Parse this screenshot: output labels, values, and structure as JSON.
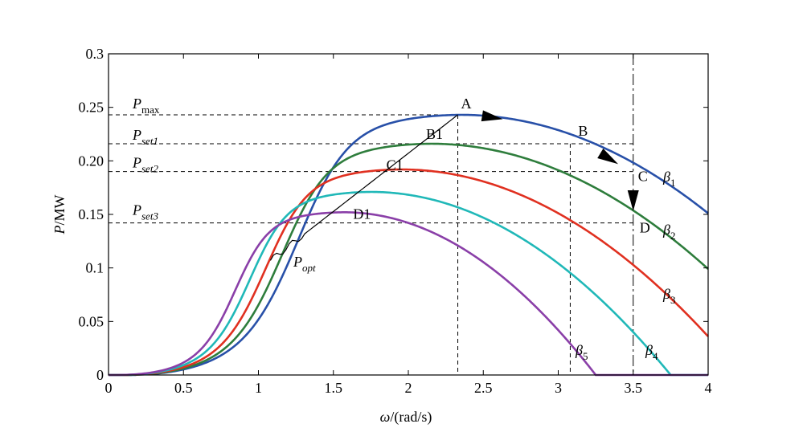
{
  "chart_data": {
    "type": "line",
    "xlabel_symbol": "ω",
    "xlabel_unit": "/(rad/s)",
    "ylabel_symbol": "P",
    "ylabel_unit": "/MW",
    "xlim": [
      0,
      4
    ],
    "ylim": [
      0,
      0.3
    ],
    "xticks": [
      0,
      0.5,
      1,
      1.5,
      2,
      2.5,
      3,
      3.5,
      4
    ],
    "xtick_labels": [
      "0",
      "0.5",
      "1",
      "1.5",
      "2",
      "2.5",
      "3",
      "3.5",
      "4"
    ],
    "yticks": [
      0,
      0.05,
      0.1,
      0.15,
      0.2,
      0.25,
      0.3
    ],
    "ytick_labels": [
      "0",
      "0.05",
      "0.1",
      "0.15",
      "0.20",
      "0.25",
      "0.3"
    ],
    "grid": false,
    "series": [
      {
        "label_main": "β",
        "label_sub": "1",
        "color": "#2850a8",
        "peak_x": 2.35,
        "peak_y": 0.243,
        "start_x": 0.33,
        "end_y": 0.151
      },
      {
        "label_main": "β",
        "label_sub": "2",
        "color": "#2e7d3c",
        "peak_x": 2.15,
        "peak_y": 0.216,
        "start_x": 0.28,
        "end_y": 0.099
      },
      {
        "label_main": "β",
        "label_sub": "3",
        "color": "#e03020",
        "peak_x": 1.95,
        "peak_y": 0.192,
        "start_x": 0.22,
        "end_y": 0.036
      },
      {
        "label_main": "β",
        "label_sub": "4",
        "color": "#20b8b8",
        "peak_x": 1.75,
        "peak_y": 0.171,
        "start_x": 0.17,
        "zero_x": 3.75
      },
      {
        "label_main": "β",
        "label_sub": "5",
        "color": "#8a3fa8",
        "peak_x": 1.57,
        "peak_y": 0.152,
        "start_x": 0.12,
        "zero_x": 3.25
      }
    ],
    "popt": {
      "label_main": "P",
      "label_sub": "opt",
      "start": [
        1.08,
        0.107
      ],
      "end": [
        2.33,
        0.243
      ]
    },
    "levels": [
      {
        "label_main": "P",
        "label_sub": "max",
        "y": 0.243
      },
      {
        "label_main": "P",
        "label_sub": "set1",
        "y": 0.216
      },
      {
        "label_main": "P",
        "label_sub": "set2",
        "y": 0.19
      },
      {
        "label_main": "P",
        "label_sub": "set3",
        "y": 0.142
      }
    ],
    "vlines": [
      2.33,
      3.08
    ],
    "dashdot_vline": 3.5,
    "points": [
      {
        "label": "A",
        "x": 2.33,
        "y": 0.243
      },
      {
        "label": "B",
        "x": 3.08,
        "y": 0.216
      },
      {
        "label": "C",
        "x": 3.5,
        "y": 0.19
      },
      {
        "label": "D",
        "x": 3.5,
        "y": 0.142
      },
      {
        "label": "B1",
        "x": 2.15,
        "y": 0.216
      },
      {
        "label": "C1",
        "x": 1.95,
        "y": 0.19
      },
      {
        "label": "D1",
        "x": 1.6,
        "y": 0.152
      }
    ]
  }
}
